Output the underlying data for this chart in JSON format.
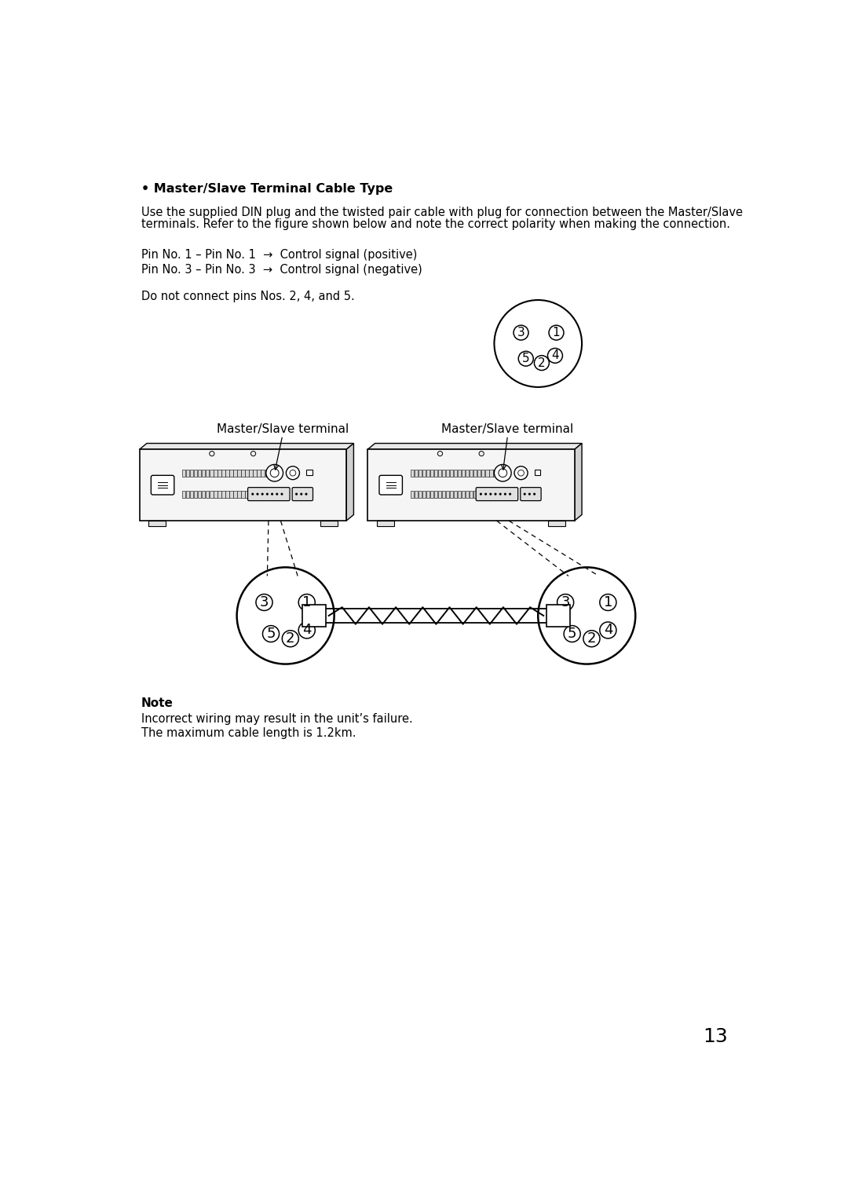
{
  "title_bold": "• Master/Slave Terminal Cable Type",
  "para1_line1": "Use the supplied DIN plug and the twisted pair cable with plug for connection between the Master/Slave",
  "para1_line2": "terminals. Refer to the figure shown below and note the correct polarity when making the connection.",
  "pin_line1": "Pin No. 1 – Pin No. 1  →  Control signal (positive)",
  "pin_line2": "Pin No. 3 – Pin No. 3  →  Control signal (negative)",
  "no_connect": "Do not connect pins Nos. 2, 4, and 5.",
  "label_left": "Master/Slave terminal",
  "label_right": "Master/Slave terminal",
  "note_bold": "Note",
  "note_line1": "Incorrect wiring may result in the unit’s failure.",
  "note_line2": "The maximum cable length is 1.2km.",
  "page_number": "13",
  "bg_color": "#ffffff",
  "text_color": "#000000"
}
